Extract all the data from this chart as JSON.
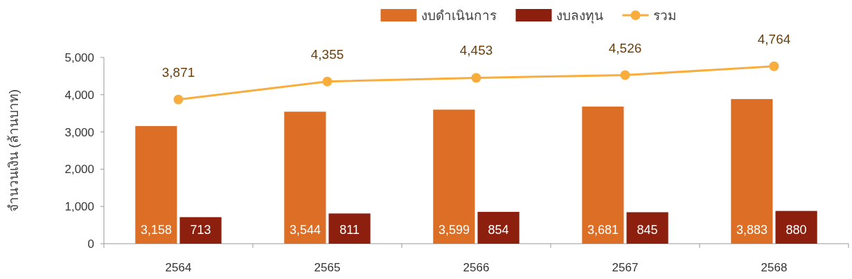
{
  "chart_data": {
    "type": "bar",
    "ylabel": "จำนวนเงิน (ล้านบาท)",
    "categories": [
      "2564",
      "2565",
      "2566",
      "2567",
      "2568"
    ],
    "series": [
      {
        "name": "งบดำเนินการ",
        "color": "#dd6e26",
        "values": [
          3158,
          3544,
          3599,
          3681,
          3883
        ],
        "value_labels": [
          "3,158",
          "3,544",
          "3,599",
          "3,681",
          "3,883"
        ]
      },
      {
        "name": "งบลงทุน",
        "color": "#8c1f0e",
        "values": [
          713,
          811,
          854,
          845,
          880
        ],
        "value_labels": [
          "713",
          "811",
          "854",
          "845",
          "880"
        ]
      },
      {
        "name": "รวม",
        "type": "line",
        "color": "#f9ad3c",
        "marker": "circle",
        "values": [
          3871,
          4355,
          4453,
          4526,
          4764
        ],
        "value_labels": [
          "3,871",
          "4,355",
          "4,453",
          "4,526",
          "4,764"
        ]
      }
    ],
    "ylim": [
      0,
      5000
    ],
    "yticks": [
      0,
      {
        "value": 1000,
        "label": "1,000"
      },
      {
        "value": 2000,
        "label": "2,000"
      },
      {
        "value": 3000,
        "label": "3,000"
      },
      {
        "value": 4000,
        "label": "4,000"
      },
      {
        "value": 5000,
        "label": "5,000"
      }
    ],
    "legend": "top"
  }
}
